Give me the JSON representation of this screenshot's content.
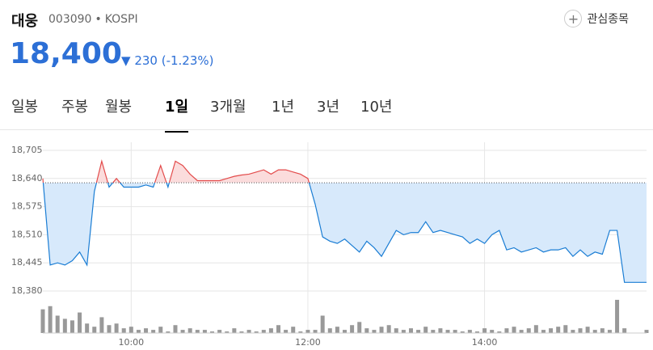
{
  "header": {
    "name": "대웅",
    "code": "003090",
    "separator": "•",
    "market": "KOSPI",
    "price": "18,400",
    "change": "230",
    "change_pct": "(-1.23%)",
    "button": "관심종목"
  },
  "tabs": {
    "items": [
      "일봉",
      "주봉",
      "월봉",
      "1일",
      "3개월",
      "1년",
      "3년",
      "10년"
    ],
    "active": 3
  },
  "chart_data": {
    "type": "area",
    "x": [
      540,
      545,
      550,
      555,
      560,
      565,
      570,
      575,
      580,
      585,
      590,
      595,
      600,
      605,
      610,
      615,
      620,
      625,
      630,
      635,
      640,
      645,
      650,
      655,
      660,
      665,
      670,
      675,
      680,
      685,
      690,
      695,
      700,
      705,
      710,
      715,
      720,
      725,
      730,
      735,
      740,
      745,
      750,
      755,
      760,
      765,
      770,
      775,
      780,
      785,
      790,
      795,
      800,
      805,
      810,
      815,
      820,
      825,
      830,
      835,
      840,
      845,
      850,
      855,
      860,
      865,
      870,
      875,
      880,
      885,
      890,
      895,
      900,
      905,
      910,
      915,
      920,
      925,
      930,
      935,
      950
    ],
    "values": [
      18640,
      18440,
      18445,
      18440,
      18450,
      18470,
      18440,
      18610,
      18680,
      18620,
      18640,
      18620,
      18620,
      18620,
      18625,
      18620,
      18670,
      18620,
      18680,
      18670,
      18650,
      18635,
      18635,
      18635,
      18635,
      18640,
      18645,
      18648,
      18650,
      18655,
      18660,
      18650,
      18660,
      18660,
      18655,
      18650,
      18640,
      18580,
      18505,
      18495,
      18490,
      18500,
      18485,
      18470,
      18495,
      18480,
      18460,
      18490,
      18520,
      18510,
      18515,
      18515,
      18540,
      18515,
      18520,
      18515,
      18510,
      18505,
      18490,
      18500,
      18490,
      18510,
      18520,
      18475,
      18480,
      18470,
      18475,
      18480,
      18470,
      18475,
      18475,
      18480,
      18460,
      18475,
      18460,
      18470,
      18465,
      18520,
      18520,
      18400,
      18400
    ],
    "baseline": 18630,
    "up_color": "#e34b4b",
    "down_color": "#1a7dd4",
    "up_fill": "#fbdcdc",
    "down_fill": "#d7e9fb",
    "volume": {
      "values": [
        30,
        34,
        22,
        18,
        16,
        26,
        12,
        8,
        20,
        10,
        12,
        6,
        8,
        4,
        6,
        4,
        8,
        2,
        10,
        4,
        6,
        4,
        4,
        2,
        4,
        2,
        6,
        2,
        4,
        2,
        4,
        6,
        10,
        4,
        8,
        2,
        4,
        4,
        22,
        6,
        8,
        4,
        10,
        14,
        6,
        4,
        8,
        10,
        6,
        4,
        6,
        4,
        8,
        4,
        6,
        4,
        4,
        2,
        4,
        2,
        6,
        4,
        2,
        6,
        8,
        4,
        6,
        10,
        4,
        6,
        8,
        10,
        4,
        6,
        8,
        4,
        6,
        4,
        42,
        6,
        4
      ],
      "ylim": [
        0,
        45
      ],
      "color": "#999999"
    },
    "xlim": [
      540,
      950
    ],
    "ylim": [
      18380,
      18705
    ],
    "xticks": [
      {
        "value": 600,
        "label": "10:00"
      },
      {
        "value": 720,
        "label": "12:00"
      },
      {
        "value": 840,
        "label": "14:00"
      }
    ],
    "yticks": [
      {
        "value": 18705,
        "label": "18,705"
      },
      {
        "value": 18640,
        "label": "18,640"
      },
      {
        "value": 18575,
        "label": "18,575"
      },
      {
        "value": 18510,
        "label": "18,510"
      },
      {
        "value": 18445,
        "label": "18,445"
      },
      {
        "value": 18380,
        "label": "18,380"
      }
    ],
    "grid": true
  }
}
